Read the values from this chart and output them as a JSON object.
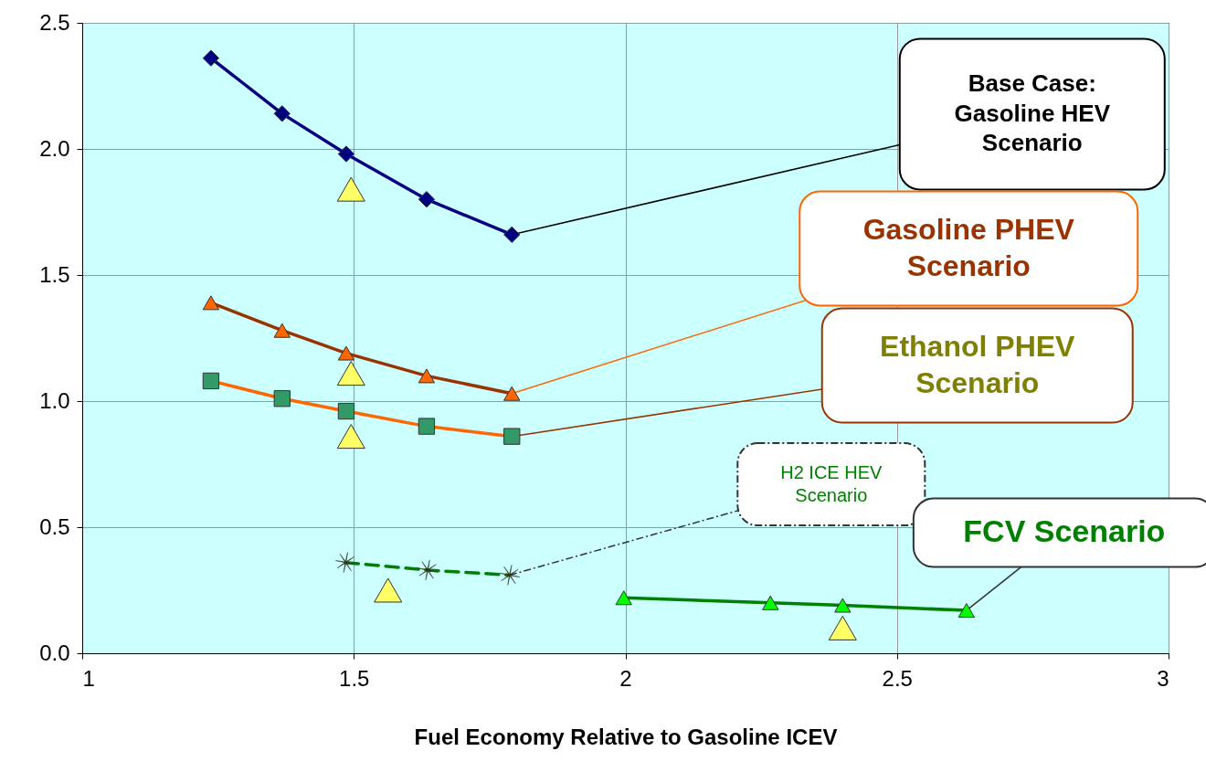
{
  "chart_data": {
    "type": "line",
    "xlabel": "Fuel Economy Relative to Gasoline ICEV",
    "xlim": [
      1,
      3
    ],
    "ylim": [
      0,
      2.5
    ],
    "xticks": [
      1,
      1.5,
      2,
      2.5,
      3
    ],
    "yticks": [
      {
        "value": 0,
        "label": "0.0"
      },
      {
        "value": 0.5,
        "label": "0.5"
      },
      {
        "value": 1,
        "label": "1.0"
      },
      {
        "value": 1.5,
        "label": "1.5"
      },
      {
        "value": 2,
        "label": "2.0"
      },
      {
        "value": 2.5,
        "label": "2.5"
      }
    ],
    "grid": true,
    "series": [
      {
        "name": "Base Case: Gasoline HEV Scenario",
        "color": "#000080",
        "marker": "diamond",
        "x": [
          1.237,
          1.368,
          1.486,
          1.634,
          1.791
        ],
        "values": [
          2.36,
          2.14,
          1.98,
          1.8,
          1.66
        ]
      },
      {
        "name": "Gasoline PHEV Scenario",
        "color": "#993300",
        "colors": [
          "#ff6600",
          "#ff6600",
          "#ff6600",
          "#ff6600",
          "#ff6600"
        ],
        "marker": "triangle",
        "x": [
          1.237,
          1.368,
          1.486,
          1.634,
          1.791
        ],
        "values": [
          1.39,
          1.28,
          1.19,
          1.1,
          1.03
        ]
      },
      {
        "name": "Ethanol PHEV Scenario",
        "color": "#ff6600",
        "colors": [
          "#339966",
          "#339966",
          "#339966",
          "#339966",
          "#339966"
        ],
        "marker": "square",
        "x": [
          1.237,
          1.368,
          1.486,
          1.634,
          1.791
        ],
        "values": [
          1.08,
          1.01,
          0.96,
          0.9,
          0.86
        ]
      },
      {
        "name": "H2 ICE HEV Scenario",
        "color": "#008000",
        "colors": [
          "#333300",
          "#333300",
          "#333300"
        ],
        "marker": "star",
        "line_style": "dashed",
        "x": [
          1.485,
          1.636,
          1.787
        ],
        "values": [
          0.36,
          0.33,
          0.31
        ]
      },
      {
        "name": "FCV Scenario",
        "color": "#008000",
        "colors": [
          "#00ff00",
          "#00ff00",
          "#00ff00",
          "#00ff00"
        ],
        "marker": "triangle",
        "x": [
          1.997,
          2.267,
          2.4,
          2.628
        ],
        "values": [
          0.22,
          0.2,
          0.19,
          0.17
        ]
      },
      {
        "type": "scatter",
        "color": "#ffff66",
        "marker": "triangle",
        "x": [
          1.495,
          1.495,
          1.495,
          1.563,
          2.4
        ],
        "values": [
          1.84,
          1.11,
          0.86,
          0.25,
          0.1
        ]
      }
    ]
  }
}
